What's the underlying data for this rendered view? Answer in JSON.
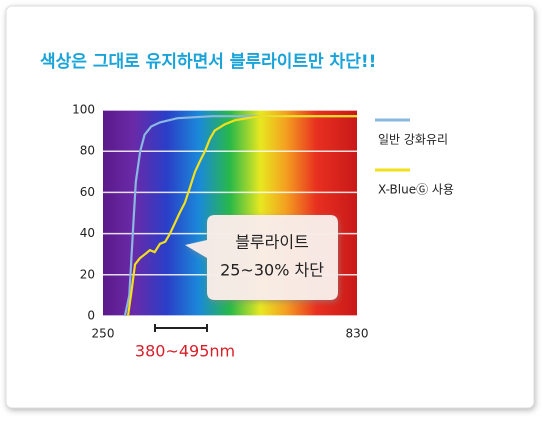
{
  "chart_data": {
    "type": "line",
    "title": "색상은 그대로 유지하면서 블루라이트만 차단!!",
    "xlim": [
      250,
      830
    ],
    "xticks": [
      250,
      830
    ],
    "ylim": [
      0,
      100
    ],
    "yticks": [
      0,
      20,
      40,
      60,
      80,
      100
    ],
    "grid": true,
    "legend": "right",
    "series": [
      {
        "name": "일반 강화유리",
        "color": "#8ab8e0",
        "x": [
          300,
          310,
          318,
          325,
          335,
          345,
          360,
          380,
          420,
          500,
          830
        ],
        "values": [
          0,
          10,
          40,
          65,
          80,
          88,
          92,
          94,
          96,
          97,
          97
        ]
      },
      {
        "name": "X-BlueⒼ 사용",
        "color": "#f2e01a",
        "x": [
          307,
          315,
          323,
          334,
          346,
          357,
          368,
          380,
          392,
          403,
          414,
          425,
          437,
          448,
          460,
          471,
          483,
          494,
          505,
          528,
          551,
          580,
          608,
          830
        ],
        "values": [
          0,
          12,
          25,
          28,
          30,
          32,
          31,
          35,
          36,
          40,
          45,
          50,
          55,
          62,
          70,
          75,
          80,
          86,
          90,
          93,
          95,
          96,
          97,
          97
        ]
      }
    ],
    "annotation": [
      "블루라이트",
      "25~30% 차단"
    ],
    "range_label": "380~495nm"
  }
}
